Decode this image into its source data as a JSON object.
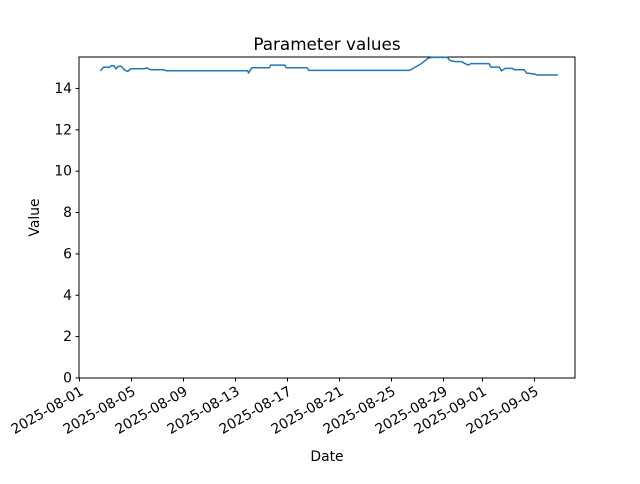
{
  "window": {
    "background": "#ffffff"
  },
  "chart_data": {
    "type": "line",
    "title": "Parameter values",
    "xlabel": "Date",
    "ylabel": "Value",
    "grid": false,
    "legend": false,
    "line_color": "#1f77b4",
    "axis_color": "#000000",
    "x_epoch_label": "2025-08-01",
    "x_tick_labels": [
      "2025-08-01",
      "2025-08-05",
      "2025-08-09",
      "2025-08-13",
      "2025-08-17",
      "2025-08-21",
      "2025-08-25",
      "2025-08-29",
      "2025-09-01",
      "2025-09-05"
    ],
    "x_tick_days": [
      0,
      4,
      8,
      12,
      16,
      20,
      24,
      28,
      31,
      35
    ],
    "x_tick_rotation_deg": 30,
    "y_ticks": [
      0,
      2,
      4,
      6,
      8,
      10,
      12,
      14
    ],
    "xlim_days": [
      0,
      38.15
    ],
    "ylim": [
      0,
      15.52
    ],
    "series": [
      {
        "name": "parameter-values",
        "points_day_value": [
          [
            1.6,
            14.85
          ],
          [
            1.85,
            15.02
          ],
          [
            2.3,
            15.02
          ],
          [
            2.45,
            15.1
          ],
          [
            2.65,
            15.1
          ],
          [
            2.8,
            14.95
          ],
          [
            3.0,
            15.07
          ],
          [
            3.2,
            15.07
          ],
          [
            3.45,
            14.9
          ],
          [
            3.7,
            14.82
          ],
          [
            3.95,
            14.95
          ],
          [
            5.0,
            14.95
          ],
          [
            5.15,
            15.0
          ],
          [
            5.5,
            14.9
          ],
          [
            6.5,
            14.9
          ],
          [
            6.65,
            14.86
          ],
          [
            12.95,
            14.86
          ],
          [
            13.0,
            14.74
          ],
          [
            13.25,
            15.0
          ],
          [
            14.6,
            15.0
          ],
          [
            14.7,
            15.13
          ],
          [
            15.8,
            15.13
          ],
          [
            15.9,
            15.0
          ],
          [
            17.5,
            15.0
          ],
          [
            17.65,
            14.87
          ],
          [
            25.4,
            14.87
          ],
          [
            26.3,
            15.2
          ],
          [
            26.8,
            15.45
          ],
          [
            27.1,
            15.5
          ],
          [
            28.3,
            15.5
          ],
          [
            28.5,
            15.35
          ],
          [
            28.9,
            15.3
          ],
          [
            29.4,
            15.3
          ],
          [
            29.6,
            15.22
          ],
          [
            29.9,
            15.13
          ],
          [
            30.1,
            15.2
          ],
          [
            31.5,
            15.2
          ],
          [
            31.65,
            15.03
          ],
          [
            32.3,
            15.03
          ],
          [
            32.45,
            14.85
          ],
          [
            32.75,
            14.97
          ],
          [
            33.3,
            14.97
          ],
          [
            33.45,
            14.9
          ],
          [
            34.2,
            14.9
          ],
          [
            34.4,
            14.74
          ],
          [
            35.0,
            14.7
          ],
          [
            35.2,
            14.65
          ],
          [
            36.8,
            14.65
          ]
        ]
      }
    ]
  }
}
